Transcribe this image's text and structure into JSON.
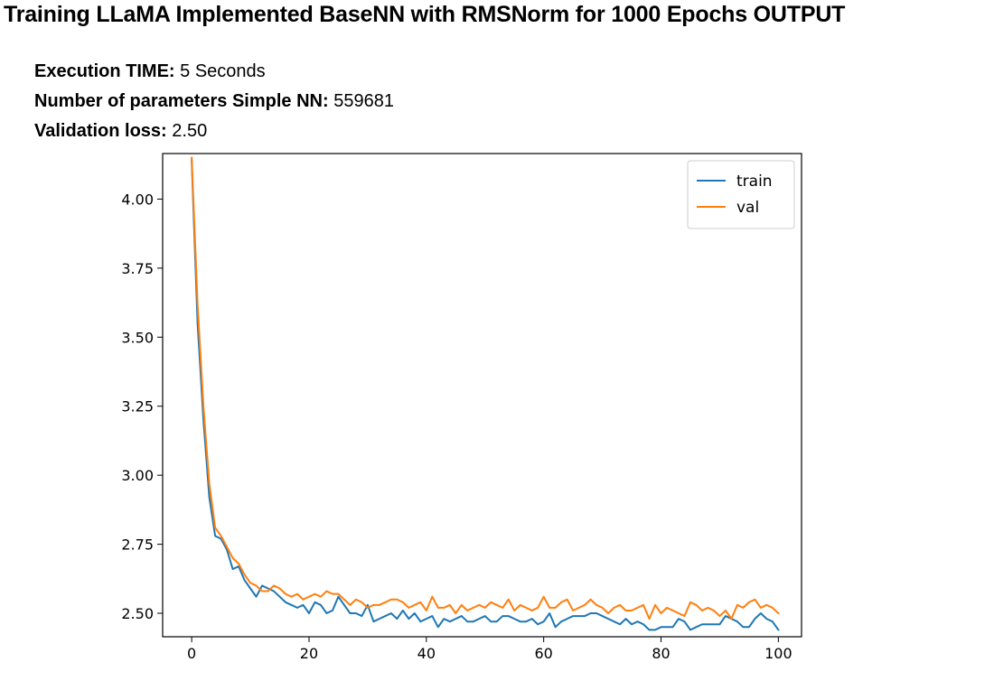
{
  "header": {
    "title": "Training LLaMA Implemented BaseNN with RMSNorm for 1000 Epochs OUTPUT"
  },
  "stats": {
    "execution_time_label": "Execution TIME:",
    "execution_time_value": "5 Seconds",
    "params_label": "Number of parameters Simple NN:",
    "params_value": "559681",
    "val_loss_label": "Validation loss:",
    "val_loss_value": "2.50"
  },
  "chart_data": {
    "type": "line",
    "title": "",
    "xlabel": "",
    "ylabel": "",
    "xlim": [
      -4.95,
      103.95
    ],
    "ylim": [
      2.415,
      4.165
    ],
    "x_ticks": [
      0,
      20,
      40,
      60,
      80,
      100
    ],
    "y_ticks": [
      2.5,
      2.75,
      3.0,
      3.25,
      3.5,
      3.75,
      4.0
    ],
    "y_tick_labels": [
      "2.50",
      "2.75",
      "3.00",
      "3.25",
      "3.50",
      "3.75",
      "4.00"
    ],
    "grid": false,
    "legend_position": "top-right",
    "series": [
      {
        "name": "train",
        "color": "#1f77b4",
        "values": [
          4.14,
          3.55,
          3.2,
          2.92,
          2.78,
          2.77,
          2.73,
          2.66,
          2.67,
          2.62,
          2.59,
          2.56,
          2.6,
          2.59,
          2.58,
          2.56,
          2.54,
          2.53,
          2.52,
          2.53,
          2.5,
          2.54,
          2.53,
          2.5,
          2.51,
          2.56,
          2.53,
          2.5,
          2.5,
          2.49,
          2.53,
          2.47,
          2.48,
          2.49,
          2.5,
          2.48,
          2.51,
          2.48,
          2.5,
          2.47,
          2.48,
          2.49,
          2.45,
          2.48,
          2.47,
          2.48,
          2.49,
          2.47,
          2.47,
          2.48,
          2.49,
          2.47,
          2.47,
          2.49,
          2.49,
          2.48,
          2.47,
          2.47,
          2.48,
          2.46,
          2.47,
          2.5,
          2.45,
          2.47,
          2.48,
          2.49,
          2.49,
          2.49,
          2.5,
          2.5,
          2.49,
          2.48,
          2.47,
          2.46,
          2.48,
          2.46,
          2.47,
          2.46,
          2.44,
          2.44,
          2.45,
          2.45,
          2.45,
          2.48,
          2.47,
          2.44,
          2.45,
          2.46,
          2.46,
          2.46,
          2.46,
          2.49,
          2.48,
          2.47,
          2.45,
          2.45,
          2.48,
          2.5,
          2.48,
          2.47,
          2.44
        ]
      },
      {
        "name": "val",
        "color": "#ff7f0e",
        "values": [
          4.15,
          3.62,
          3.25,
          2.97,
          2.81,
          2.78,
          2.74,
          2.7,
          2.68,
          2.64,
          2.61,
          2.6,
          2.58,
          2.58,
          2.6,
          2.59,
          2.57,
          2.56,
          2.57,
          2.55,
          2.56,
          2.57,
          2.56,
          2.58,
          2.57,
          2.57,
          2.55,
          2.53,
          2.55,
          2.54,
          2.52,
          2.53,
          2.53,
          2.54,
          2.55,
          2.55,
          2.54,
          2.52,
          2.53,
          2.54,
          2.51,
          2.56,
          2.52,
          2.52,
          2.53,
          2.5,
          2.53,
          2.51,
          2.52,
          2.53,
          2.52,
          2.54,
          2.53,
          2.52,
          2.55,
          2.51,
          2.53,
          2.52,
          2.51,
          2.52,
          2.56,
          2.52,
          2.52,
          2.54,
          2.55,
          2.51,
          2.52,
          2.53,
          2.55,
          2.53,
          2.52,
          2.5,
          2.52,
          2.53,
          2.51,
          2.51,
          2.52,
          2.53,
          2.48,
          2.53,
          2.5,
          2.52,
          2.51,
          2.5,
          2.49,
          2.54,
          2.53,
          2.51,
          2.52,
          2.51,
          2.49,
          2.51,
          2.48,
          2.53,
          2.52,
          2.54,
          2.55,
          2.52,
          2.53,
          2.52,
          2.5
        ]
      }
    ]
  }
}
